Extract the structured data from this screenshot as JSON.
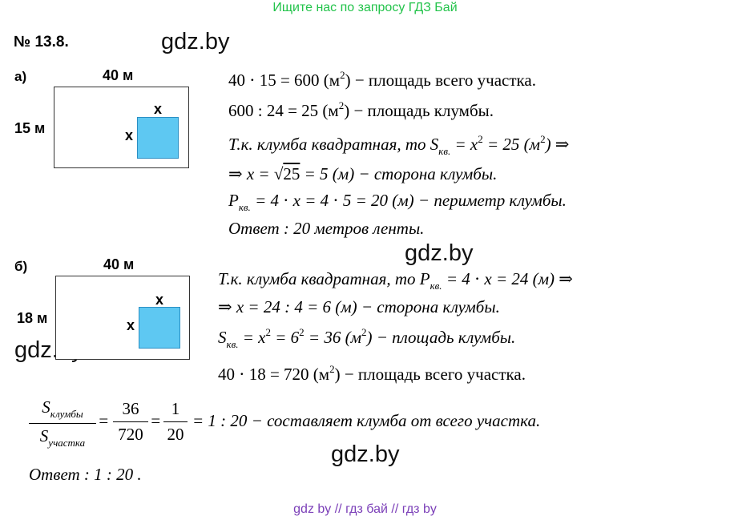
{
  "header": {
    "banner": "Ищите нас по запросу ГДЗ Бай"
  },
  "problem": {
    "number": "№ 13.8."
  },
  "watermarks": [
    "gdz.by",
    "gdz.by",
    "gdz.by",
    "gdz.by"
  ],
  "part_a": {
    "label": "а)",
    "width_label": "40 м",
    "height_label": "15 м",
    "x_top": "x",
    "x_side": "x",
    "lines": {
      "l1": "40 ⋅ 15 = 600   (м², ) − площадь   всего   участка.",
      "l1_a": "40 ⋅ 15 = 600   (м",
      "l1_b": ") − площадь   всего   участка.",
      "l2_a": "600 : 24 = 25   (м",
      "l2_b": ") − площадь   клумбы.",
      "l3_a": "Т.к.   клумба   квадратная,   то   S",
      "l3_sub": "кв.",
      "l3_b": " = x",
      "l3_c": " = 25   (м",
      "l3_d": ")   ⇒",
      "l4_a": "⇒   x = √",
      "l4_root": "25",
      "l4_b": " = 5   (м) − сторона   клумбы.",
      "l5_a": "P",
      "l5_sub": "кв.",
      "l5_b": " = 4 ⋅ x = 4 ⋅ 5 = 20   (м) − периметр   клумбы.",
      "l6": "Ответ :   20   метров   ленты."
    }
  },
  "part_b": {
    "label": "б)",
    "width_label": "40 м",
    "height_label": "18 м",
    "x_top": "x",
    "x_side": "x",
    "lines": {
      "l1_a": "Т.к.   клумба   квадратная,   то   P",
      "l1_sub": "кв.",
      "l1_b": " = 4 ⋅ x = 24   (м)   ⇒",
      "l2": "⇒   x = 24 : 4 = 6   (м) − сторона   клумбы.",
      "l3_a": "S",
      "l3_sub": "кв.",
      "l3_b": " = x",
      "l3_c": " = 6",
      "l3_d": " = 36   (м",
      "l3_e": ") − площадь   клумбы.",
      "l4_a": "40 ⋅ 18 = 720   (м",
      "l4_b": ") − площадь   всего   участка."
    }
  },
  "ratio": {
    "num_S": "S",
    "num_sub": "клумбы",
    "den_S": "S",
    "den_sub": "участка",
    "f2_num": "36",
    "f2_den": "720",
    "f3_num": "1",
    "f3_den": "20",
    "eq1": "=",
    "eq2": "=",
    "tail": "= 1 : 20   − составляет   клумба   от   всего   участка.",
    "answer": "Ответ :   1 : 20   ."
  },
  "sup2": "2",
  "footer": {
    "banner": "gdz by  //  гдз бай  //  гдз by"
  }
}
